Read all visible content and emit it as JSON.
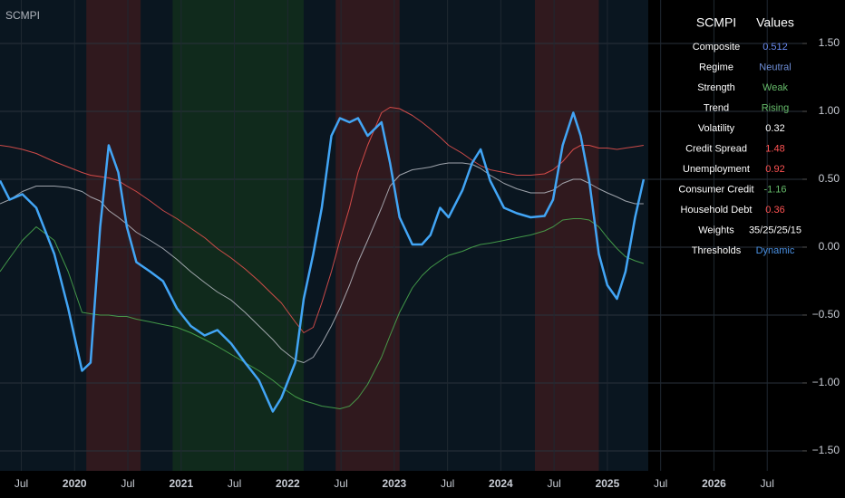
{
  "chart_data": {
    "type": "line",
    "title": "SCMPI",
    "x": [
      2019.3,
      2019.39,
      2019.51,
      2019.64,
      2019.81,
      2019.94,
      2020.07,
      2020.15,
      2020.24,
      2020.32,
      2020.41,
      2020.49,
      2020.58,
      2020.71,
      2020.83,
      2020.96,
      2021.09,
      2021.22,
      2021.34,
      2021.47,
      2021.6,
      2021.73,
      2021.86,
      2021.94,
      2022.07,
      2022.15,
      2022.24,
      2022.32,
      2022.41,
      2022.49,
      2022.58,
      2022.66,
      2022.75,
      2022.88,
      2022.96,
      2023.05,
      2023.17,
      2023.26,
      2023.34,
      2023.43,
      2023.51,
      2023.64,
      2023.73,
      2023.81,
      2023.9,
      2024.03,
      2024.15,
      2024.28,
      2024.41,
      2024.49,
      2024.58,
      2024.68,
      2024.75,
      2024.83,
      2024.92,
      2025.0,
      2025.09,
      2025.17,
      2025.26,
      2025.34
    ],
    "series": [
      {
        "color": "#ef5350",
        "values": [
          0.75,
          0.74,
          0.72,
          0.69,
          0.63,
          0.59,
          0.55,
          0.53,
          0.52,
          0.51,
          0.49,
          0.45,
          0.41,
          0.34,
          0.27,
          0.21,
          0.14,
          0.07,
          -0.01,
          -0.08,
          -0.16,
          -0.25,
          -0.35,
          -0.41,
          -0.55,
          -0.63,
          -0.59,
          -0.41,
          -0.18,
          0.05,
          0.29,
          0.55,
          0.75,
          0.99,
          1.03,
          1.02,
          0.97,
          0.92,
          0.87,
          0.81,
          0.75,
          0.69,
          0.64,
          0.6,
          0.57,
          0.55,
          0.53,
          0.53,
          0.54,
          0.57,
          0.63,
          0.72,
          0.75,
          0.75,
          0.73,
          0.73,
          0.72,
          0.73,
          0.74,
          0.75
        ]
      },
      {
        "color": "#b8bcc4",
        "values": [
          0.32,
          0.35,
          0.41,
          0.45,
          0.45,
          0.44,
          0.41,
          0.37,
          0.34,
          0.27,
          0.22,
          0.17,
          0.11,
          0.05,
          -0.01,
          -0.09,
          -0.18,
          -0.26,
          -0.33,
          -0.39,
          -0.48,
          -0.58,
          -0.68,
          -0.75,
          -0.83,
          -0.85,
          -0.81,
          -0.71,
          -0.58,
          -0.45,
          -0.28,
          -0.11,
          0.05,
          0.29,
          0.45,
          0.53,
          0.57,
          0.58,
          0.59,
          0.61,
          0.62,
          0.62,
          0.61,
          0.58,
          0.53,
          0.47,
          0.43,
          0.4,
          0.4,
          0.42,
          0.47,
          0.5,
          0.5,
          0.47,
          0.43,
          0.4,
          0.37,
          0.34,
          0.32,
          0.32
        ]
      },
      {
        "color": "#4caf50",
        "values": [
          -0.18,
          -0.08,
          0.05,
          0.15,
          0.05,
          -0.18,
          -0.48,
          -0.49,
          -0.5,
          -0.5,
          -0.51,
          -0.51,
          -0.53,
          -0.55,
          -0.57,
          -0.59,
          -0.63,
          -0.68,
          -0.73,
          -0.79,
          -0.85,
          -0.91,
          -0.98,
          -1.03,
          -1.1,
          -1.13,
          -1.15,
          -1.17,
          -1.18,
          -1.19,
          -1.17,
          -1.11,
          -1.01,
          -0.81,
          -0.65,
          -0.48,
          -0.3,
          -0.21,
          -0.15,
          -0.1,
          -0.06,
          -0.03,
          0,
          0.02,
          0.03,
          0.05,
          0.07,
          0.09,
          0.12,
          0.15,
          0.2,
          0.21,
          0.21,
          0.2,
          0.15,
          0.07,
          -0.01,
          -0.07,
          -0.1,
          -0.12
        ]
      },
      {
        "color": "#42a5f5",
        "values": [
          0.49,
          0.35,
          0.39,
          0.29,
          -0.05,
          -0.45,
          -0.91,
          -0.85,
          0.15,
          0.75,
          0.55,
          0.15,
          -0.11,
          -0.18,
          -0.25,
          -0.45,
          -0.58,
          -0.65,
          -0.61,
          -0.71,
          -0.85,
          -0.98,
          -1.21,
          -1.11,
          -0.85,
          -0.38,
          -0.05,
          0.29,
          0.82,
          0.95,
          0.92,
          0.95,
          0.82,
          0.92,
          0.62,
          0.22,
          0.02,
          0.02,
          0.09,
          0.29,
          0.22,
          0.42,
          0.62,
          0.72,
          0.49,
          0.29,
          0.25,
          0.22,
          0.23,
          0.35,
          0.75,
          0.99,
          0.82,
          0.49,
          -0.05,
          -0.28,
          -0.38,
          -0.18,
          0.22,
          0.5
        ]
      }
    ],
    "shading": [
      {
        "start": 2020.11,
        "end": 2020.62,
        "color": "#3a1a1e"
      },
      {
        "start": 2020.92,
        "end": 2022.15,
        "color": "#12301c"
      },
      {
        "start": 2022.45,
        "end": 2023.05,
        "color": "#3a1a1e"
      },
      {
        "start": 2024.32,
        "end": 2024.92,
        "color": "#3a1a1e"
      }
    ],
    "xlim": [
      2019.3,
      2026.83
    ],
    "xticks": [
      {
        "value": 2019.5,
        "label": "Jul"
      },
      2020,
      {
        "value": 2020.5,
        "label": "Jul"
      },
      2021,
      {
        "value": 2021.5,
        "label": "Jul"
      },
      2022,
      {
        "value": 2022.5,
        "label": "Jul"
      },
      2023,
      {
        "value": 2023.5,
        "label": "Jul"
      },
      2024,
      {
        "value": 2024.5,
        "label": "Jul"
      },
      2025,
      {
        "value": 2025.5,
        "label": "Jul"
      },
      2026,
      {
        "value": 2026.5,
        "label": "Jul"
      }
    ],
    "ylim": [
      -1.647,
      1.82
    ],
    "yticks": [
      {
        "value": 1.5,
        "label": "1.50"
      },
      {
        "value": 1,
        "label": "1.00"
      },
      {
        "value": 0.5,
        "label": "0.50"
      },
      {
        "value": 0,
        "label": "0.00"
      },
      {
        "value": -0.5,
        "label": "−0.50"
      },
      {
        "value": -1,
        "label": "−1.00"
      },
      {
        "value": -1.5,
        "label": "−1.50"
      }
    ],
    "grid": true
  },
  "table": {
    "header": [
      "SCMPI",
      "Values"
    ],
    "rows": [
      {
        "label": "Composite",
        "value": "0.512",
        "color": "#6a8bf0"
      },
      {
        "label": "Regime",
        "value": "Neutral",
        "color": "#6f8fd8"
      },
      {
        "label": "Strength",
        "value": "Weak",
        "color": "#66bb6a"
      },
      {
        "label": "Trend",
        "value": "Rising",
        "color": "#66bb6a"
      },
      {
        "label": "Volatility",
        "value": "0.32",
        "color": "#ffffff"
      },
      {
        "label": "Credit Spread",
        "value": "1.48",
        "color": "#ff5252"
      },
      {
        "label": "Unemployment",
        "value": "0.92",
        "color": "#ff5252"
      },
      {
        "label": "Consumer Credit",
        "value": "-1.16",
        "color": "#66bb6a"
      },
      {
        "label": "Household Debt",
        "value": "0.36",
        "color": "#ff5252"
      },
      {
        "label": "Weights",
        "value": "35/25/25/15",
        "color": "#ffffff"
      },
      {
        "label": "Thresholds",
        "value": "Dynamic",
        "color": "#4a90e2"
      }
    ]
  }
}
